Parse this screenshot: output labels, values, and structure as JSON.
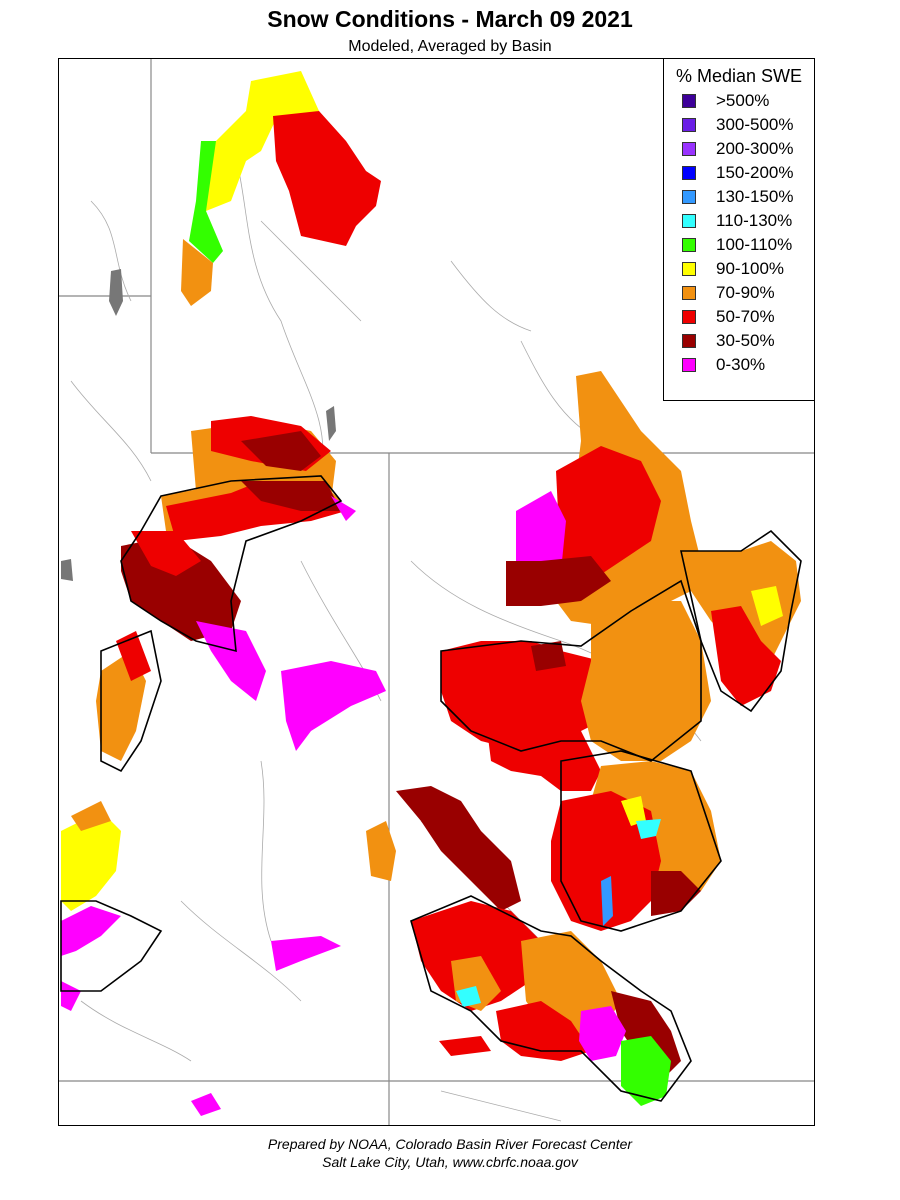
{
  "title": "Snow Conditions - March 09 2021",
  "subtitle": "Modeled, Averaged by Basin",
  "legend": {
    "title": "% Median SWE",
    "items": [
      {
        "label": ">500%",
        "color": "#3d0099"
      },
      {
        "label": "300-500%",
        "color": "#6a1ee6"
      },
      {
        "label": "200-300%",
        "color": "#9933ff"
      },
      {
        "label": "150-200%",
        "color": "#0000ff"
      },
      {
        "label": "130-150%",
        "color": "#3399ff"
      },
      {
        "label": "110-130%",
        "color": "#33ffff"
      },
      {
        "label": "100-110%",
        "color": "#33ff00"
      },
      {
        "label": "90-100%",
        "color": "#ffff00"
      },
      {
        "label": "70-90%",
        "color": "#f29111"
      },
      {
        "label": "50-70%",
        "color": "#ee0000"
      },
      {
        "label": "30-50%",
        "color": "#990000"
      },
      {
        "label": "0-30%",
        "color": "#ff00ff"
      }
    ]
  },
  "footer": {
    "line1": "Prepared by NOAA, Colorado Basin River Forecast Center",
    "line2": "Salt Lake City, Utah, www.cbrfc.noaa.gov"
  }
}
